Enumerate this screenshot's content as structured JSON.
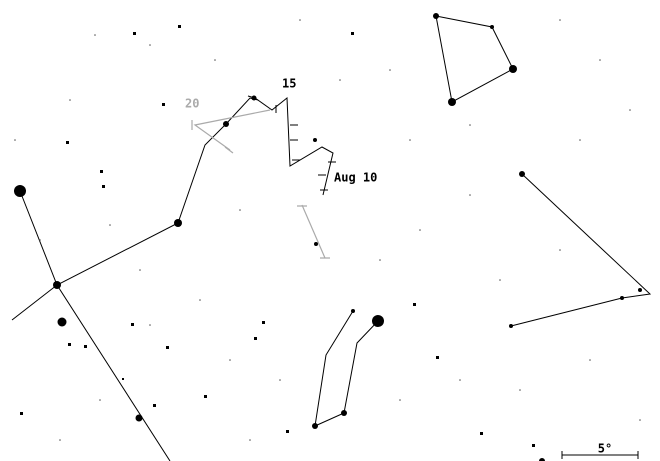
{
  "labels": [
    "15",
    "20",
    "Aug 10"
  ],
  "scale_label": "5°"
}
